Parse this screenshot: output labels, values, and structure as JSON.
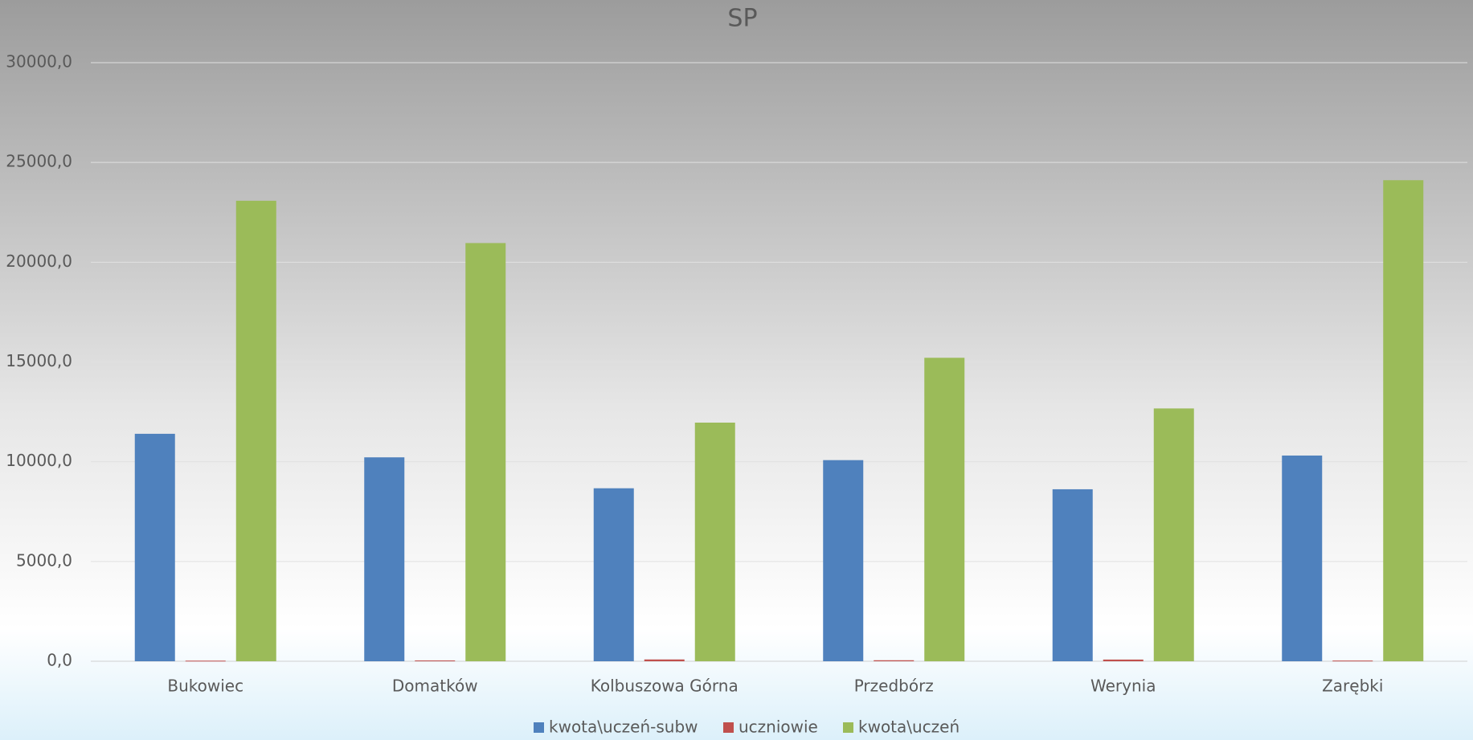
{
  "chart_data": {
    "type": "bar",
    "title": "SP",
    "categories": [
      "Bukowiec",
      "Domatków",
      "Kolbuszowa Górna",
      "Przedbórz",
      "Werynia",
      "Zarębki"
    ],
    "series": [
      {
        "name": "kwota\\uczeń-subw",
        "color": "#4f81bd",
        "values": [
          11400,
          10220,
          8670,
          10080,
          8620,
          10310
        ]
      },
      {
        "name": "uczniowie",
        "color": "#c0504d",
        "values": [
          30,
          40,
          90,
          50,
          85,
          35
        ]
      },
      {
        "name": "kwota\\uczeń",
        "color": "#9bbb59",
        "values": [
          23080,
          20960,
          11960,
          15210,
          12670,
          24110
        ]
      }
    ],
    "ylim": [
      0,
      30000
    ],
    "yticks": [
      {
        "value": 0,
        "label": "0,0"
      },
      {
        "value": 5000,
        "label": "5000,0"
      },
      {
        "value": 10000,
        "label": "10000,0"
      },
      {
        "value": 15000,
        "label": "15000,0"
      },
      {
        "value": 20000,
        "label": "20000,0"
      },
      {
        "value": 25000,
        "label": "25000,0"
      },
      {
        "value": 30000,
        "label": "30000,0"
      }
    ],
    "grid": true,
    "legend": "bottom"
  }
}
